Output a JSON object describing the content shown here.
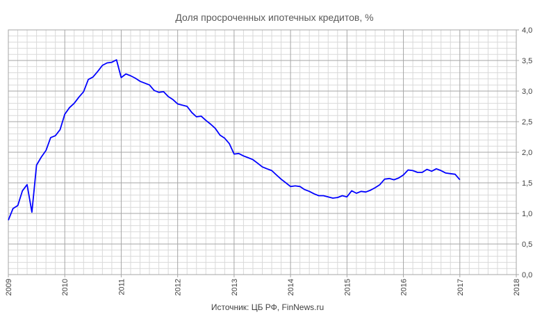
{
  "chart_data": {
    "type": "line",
    "title": "Доля просроченных ипотечных кредитов, %",
    "source": "Источник: ЦБ РФ, FinNews.ru",
    "x_ticks": [
      "2009",
      "2010",
      "2011",
      "2012",
      "2013",
      "2014",
      "2015",
      "2016",
      "2017",
      "2018"
    ],
    "y_ticks": [
      "0,0",
      "0,5",
      "1,0",
      "1,5",
      "2,0",
      "2,5",
      "3,0",
      "3,5",
      "4,0"
    ],
    "xlim": [
      2009,
      2018
    ],
    "ylim": [
      0,
      4
    ],
    "y_side": "right",
    "grid": true,
    "x_minor_per_year": 6,
    "y_minor_step": 0.1,
    "series": [
      {
        "color": "#0000ff",
        "x": [
          2009.0,
          2009.083,
          2009.167,
          2009.25,
          2009.333,
          2009.417,
          2009.5,
          2009.583,
          2009.667,
          2009.75,
          2009.833,
          2009.917,
          2010.0,
          2010.083,
          2010.167,
          2010.25,
          2010.333,
          2010.417,
          2010.5,
          2010.583,
          2010.667,
          2010.75,
          2010.833,
          2010.917,
          2011.0,
          2011.083,
          2011.167,
          2011.25,
          2011.333,
          2011.417,
          2011.5,
          2011.583,
          2011.667,
          2011.75,
          2011.833,
          2011.917,
          2012.0,
          2012.083,
          2012.167,
          2012.25,
          2012.333,
          2012.417,
          2012.5,
          2012.583,
          2012.667,
          2012.75,
          2012.833,
          2012.917,
          2013.0,
          2013.083,
          2013.167,
          2013.25,
          2013.333,
          2013.417,
          2013.5,
          2013.583,
          2013.667,
          2013.75,
          2013.833,
          2013.917,
          2014.0,
          2014.083,
          2014.167,
          2014.25,
          2014.333,
          2014.417,
          2014.5,
          2014.583,
          2014.667,
          2014.75,
          2014.833,
          2014.917,
          2015.0,
          2015.083,
          2015.167,
          2015.25,
          2015.333,
          2015.417,
          2015.5,
          2015.583,
          2015.667,
          2015.75,
          2015.833,
          2015.917,
          2016.0,
          2016.083,
          2016.167,
          2016.25,
          2016.333,
          2016.417,
          2016.5,
          2016.583,
          2016.667,
          2016.75,
          2016.833,
          2016.917,
          2017.0
        ],
        "y": [
          0.89,
          1.08,
          1.13,
          1.37,
          1.47,
          1.02,
          1.79,
          1.92,
          2.03,
          2.24,
          2.27,
          2.37,
          2.62,
          2.73,
          2.8,
          2.9,
          2.99,
          3.19,
          3.23,
          3.32,
          3.42,
          3.46,
          3.47,
          3.51,
          3.22,
          3.28,
          3.25,
          3.21,
          3.16,
          3.13,
          3.1,
          3.01,
          2.98,
          2.99,
          2.91,
          2.86,
          2.79,
          2.77,
          2.75,
          2.65,
          2.58,
          2.59,
          2.52,
          2.46,
          2.39,
          2.28,
          2.23,
          2.14,
          1.97,
          1.98,
          1.94,
          1.91,
          1.88,
          1.82,
          1.76,
          1.73,
          1.7,
          1.63,
          1.56,
          1.5,
          1.44,
          1.45,
          1.44,
          1.39,
          1.36,
          1.32,
          1.29,
          1.29,
          1.27,
          1.25,
          1.26,
          1.29,
          1.27,
          1.37,
          1.33,
          1.36,
          1.35,
          1.38,
          1.42,
          1.47,
          1.56,
          1.57,
          1.55,
          1.58,
          1.63,
          1.71,
          1.7,
          1.67,
          1.67,
          1.72,
          1.69,
          1.73,
          1.7,
          1.66,
          1.65,
          1.64,
          1.55
        ]
      }
    ]
  }
}
